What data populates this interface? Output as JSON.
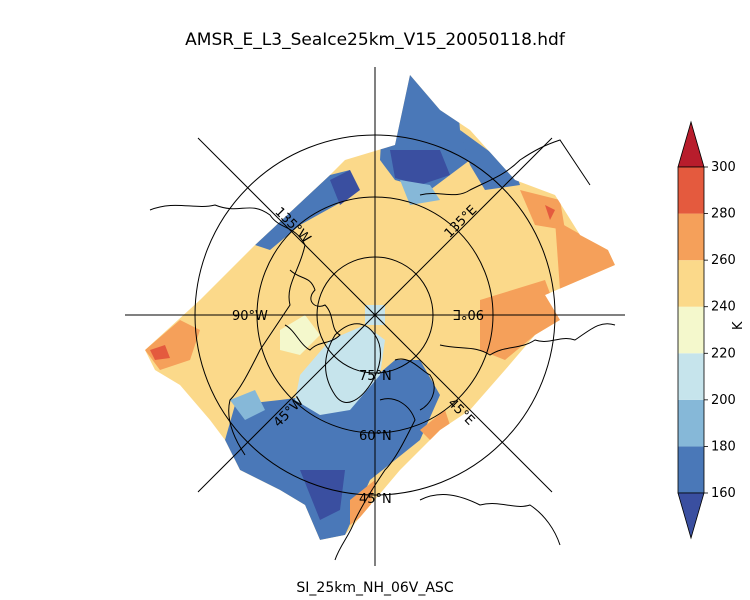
{
  "figure": {
    "title": "AMSR_E_L3_SeaIce25km_V15_20050118.hdf",
    "subtitle": "SI_25km_NH_06V_ASC"
  },
  "map": {
    "projection": "north-polar-stereographic",
    "latitude_labels": [
      "75°N",
      "60°N",
      "45°N"
    ],
    "longitude_labels": [
      "90°W",
      "90°E",
      "45°W",
      "45°E",
      "135°W",
      "135°E"
    ]
  },
  "colorbar": {
    "unit": "K",
    "ticks": [
      "160",
      "180",
      "200",
      "220",
      "240",
      "260",
      "280",
      "300"
    ],
    "colors": [
      "#3a4fa0",
      "#4a78b8",
      "#86b8d8",
      "#c6e4ec",
      "#f4f8cc",
      "#fbd98a",
      "#f5a05a",
      "#e45a3e",
      "#b81d2c"
    ],
    "extend": "both"
  },
  "chart_data": {
    "type": "heatmap",
    "title": "AMSR_E_L3_SeaIce25km_V15_20050118.hdf",
    "xlabel": "SI_25km_NH_06V_ASC",
    "colorbar_label": "K",
    "value_range": [
      160,
      300
    ],
    "levels": [
      160,
      180,
      200,
      220,
      240,
      260,
      280,
      300
    ]
  }
}
